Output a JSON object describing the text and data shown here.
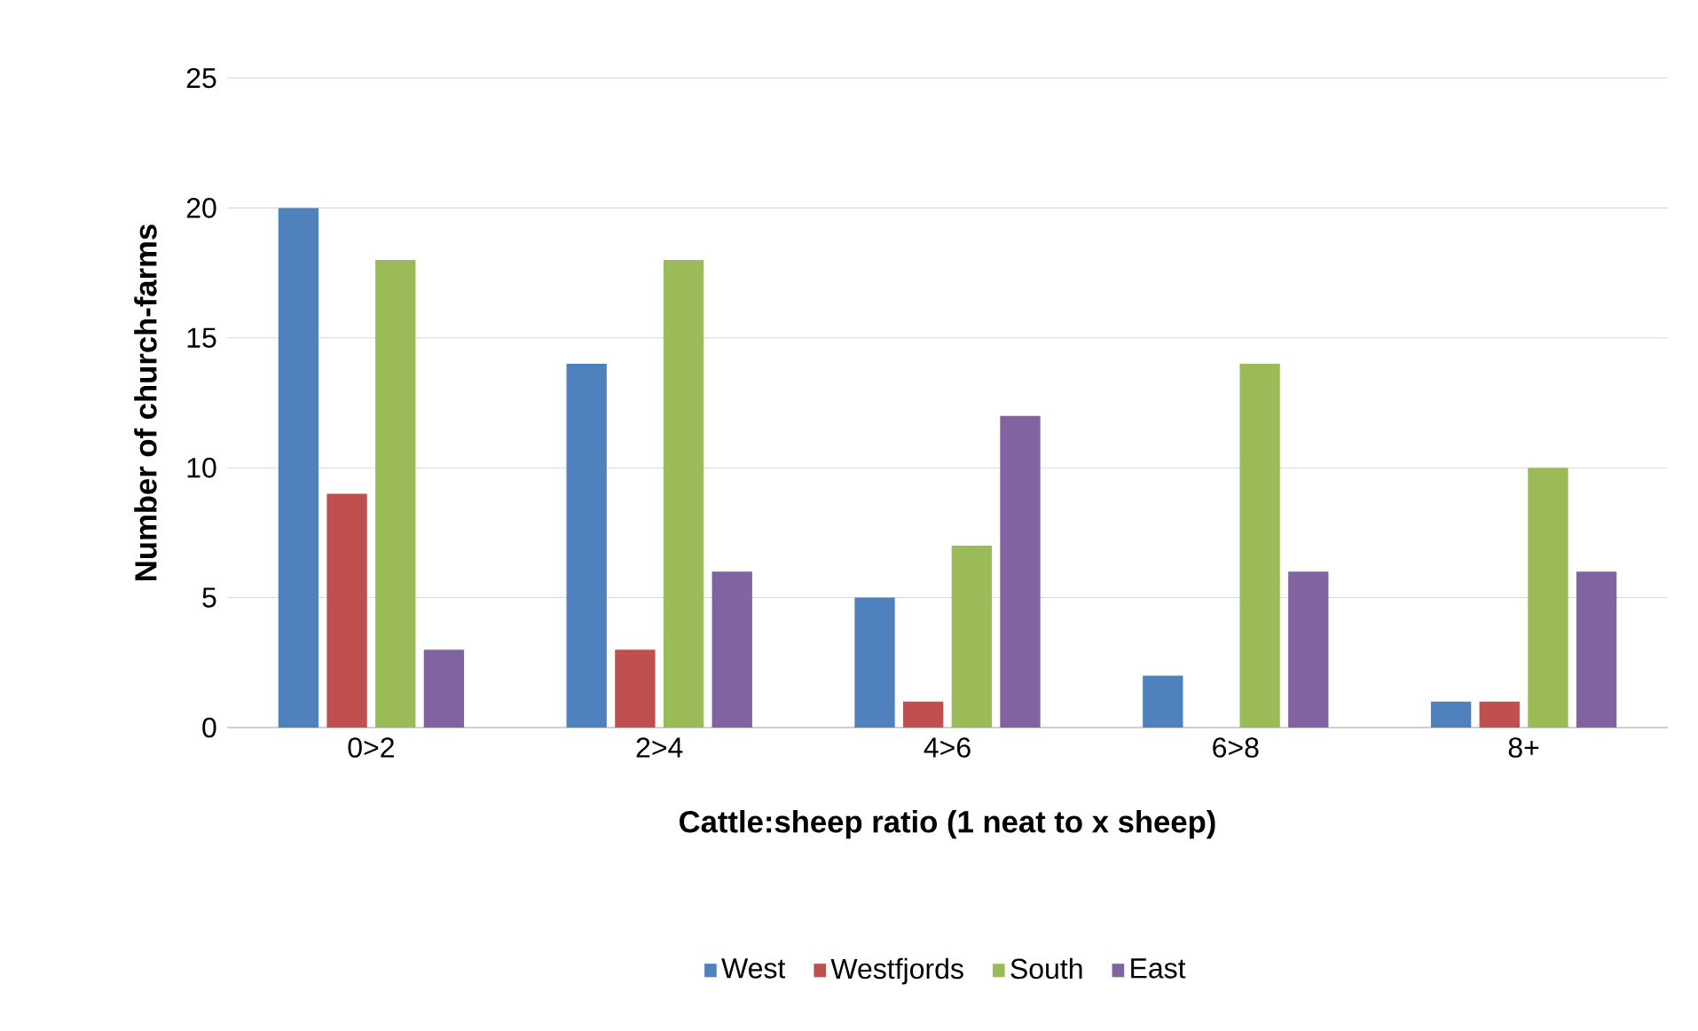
{
  "chart_data": {
    "type": "bar",
    "categories": [
      "0>2",
      "2>4",
      "4>6",
      "6>8",
      "8+"
    ],
    "xlabel": "Cattle:sheep ratio (1 neat to x sheep)",
    "ylabel": "Number of church-farms",
    "series": [
      {
        "name": "West",
        "color": "#4f81bd",
        "values": [
          20,
          14,
          5,
          2,
          1
        ]
      },
      {
        "name": "Westfjords",
        "color": "#c0504d",
        "values": [
          9,
          3,
          1,
          0,
          1
        ]
      },
      {
        "name": "South",
        "color": "#9bbb59",
        "values": [
          18,
          18,
          7,
          14,
          10
        ]
      },
      {
        "name": "East",
        "color": "#8064a2",
        "values": [
          3,
          6,
          12,
          6,
          6
        ]
      }
    ],
    "ylim": [
      0,
      25
    ],
    "yticks": [
      0,
      5,
      10,
      15,
      20,
      25
    ],
    "grid": "y",
    "legend": "bottom"
  }
}
